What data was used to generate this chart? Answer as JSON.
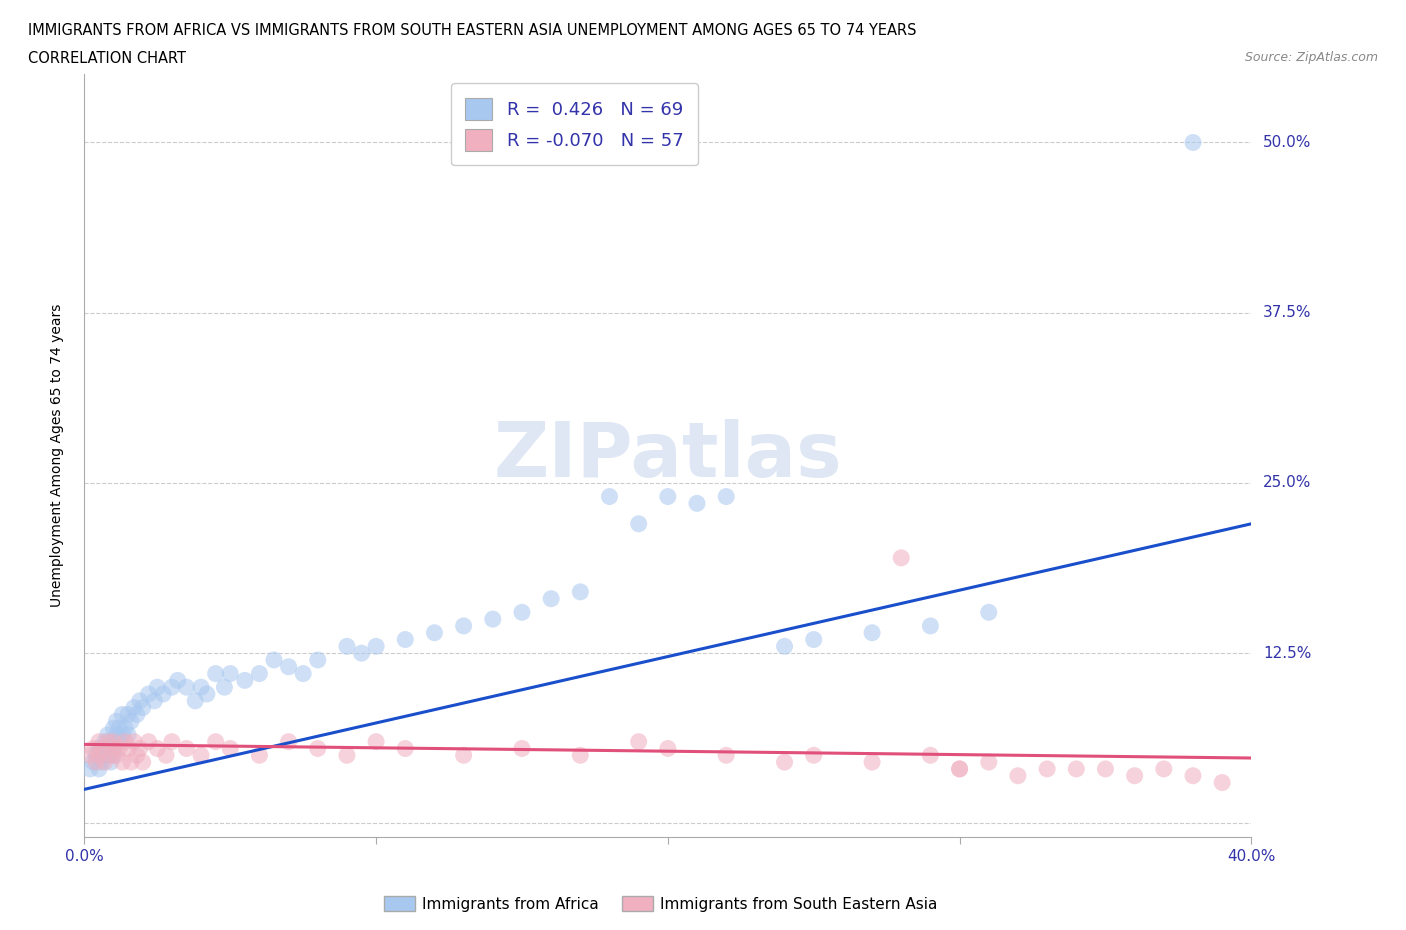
{
  "title_line1": "IMMIGRANTS FROM AFRICA VS IMMIGRANTS FROM SOUTH EASTERN ASIA UNEMPLOYMENT AMONG AGES 65 TO 74 YEARS",
  "title_line2": "CORRELATION CHART",
  "source": "Source: ZipAtlas.com",
  "ylabel": "Unemployment Among Ages 65 to 74 years",
  "xlim": [
    0.0,
    0.4
  ],
  "ylim": [
    -0.01,
    0.55
  ],
  "ytick_values": [
    0.0,
    0.125,
    0.25,
    0.375,
    0.5
  ],
  "ytick_labels": [
    "",
    "12.5%",
    "25.0%",
    "37.5%",
    "50.0%"
  ],
  "xtick_values": [
    0.0,
    0.1,
    0.2,
    0.3,
    0.4
  ],
  "xtick_labels": [
    "0.0%",
    "",
    "",
    "",
    "40.0%"
  ],
  "color_africa": "#a8c8f0",
  "color_sea": "#f0b0c0",
  "line_color_africa": "#1a4fcc",
  "line_color_sea": "#e0507a",
  "R_africa": 0.426,
  "N_africa": 69,
  "R_sea": -0.07,
  "N_sea": 57,
  "watermark": "ZIPatlas",
  "legend_label_africa": "Immigrants from Africa",
  "legend_label_sea": "Immigrants from South Eastern Asia",
  "africa_x": [
    0.002,
    0.003,
    0.004,
    0.005,
    0.005,
    0.006,
    0.007,
    0.007,
    0.008,
    0.008,
    0.009,
    0.009,
    0.01,
    0.01,
    0.01,
    0.011,
    0.011,
    0.012,
    0.012,
    0.013,
    0.013,
    0.014,
    0.015,
    0.015,
    0.016,
    0.017,
    0.018,
    0.019,
    0.02,
    0.022,
    0.024,
    0.025,
    0.027,
    0.03,
    0.032,
    0.035,
    0.038,
    0.04,
    0.042,
    0.045,
    0.048,
    0.05,
    0.055,
    0.06,
    0.065,
    0.07,
    0.075,
    0.08,
    0.09,
    0.095,
    0.1,
    0.11,
    0.12,
    0.13,
    0.14,
    0.15,
    0.16,
    0.17,
    0.18,
    0.19,
    0.2,
    0.21,
    0.22,
    0.24,
    0.25,
    0.27,
    0.29,
    0.31,
    0.38
  ],
  "africa_y": [
    0.04,
    0.045,
    0.05,
    0.04,
    0.055,
    0.045,
    0.05,
    0.06,
    0.05,
    0.065,
    0.045,
    0.06,
    0.05,
    0.055,
    0.07,
    0.065,
    0.075,
    0.06,
    0.07,
    0.065,
    0.08,
    0.07,
    0.065,
    0.08,
    0.075,
    0.085,
    0.08,
    0.09,
    0.085,
    0.095,
    0.09,
    0.1,
    0.095,
    0.1,
    0.105,
    0.1,
    0.09,
    0.1,
    0.095,
    0.11,
    0.1,
    0.11,
    0.105,
    0.11,
    0.12,
    0.115,
    0.11,
    0.12,
    0.13,
    0.125,
    0.13,
    0.135,
    0.14,
    0.145,
    0.15,
    0.155,
    0.165,
    0.17,
    0.24,
    0.22,
    0.24,
    0.235,
    0.24,
    0.13,
    0.135,
    0.14,
    0.145,
    0.155,
    0.5
  ],
  "sea_x": [
    0.002,
    0.003,
    0.004,
    0.005,
    0.005,
    0.006,
    0.007,
    0.008,
    0.009,
    0.01,
    0.01,
    0.011,
    0.012,
    0.013,
    0.014,
    0.015,
    0.016,
    0.017,
    0.018,
    0.019,
    0.02,
    0.022,
    0.025,
    0.028,
    0.03,
    0.035,
    0.04,
    0.045,
    0.05,
    0.06,
    0.07,
    0.08,
    0.09,
    0.1,
    0.11,
    0.13,
    0.15,
    0.17,
    0.19,
    0.2,
    0.22,
    0.24,
    0.25,
    0.27,
    0.29,
    0.3,
    0.31,
    0.33,
    0.35,
    0.36,
    0.37,
    0.38,
    0.39,
    0.28,
    0.3,
    0.32,
    0.34
  ],
  "sea_y": [
    0.05,
    0.055,
    0.045,
    0.06,
    0.05,
    0.055,
    0.045,
    0.06,
    0.05,
    0.055,
    0.06,
    0.05,
    0.055,
    0.045,
    0.06,
    0.055,
    0.045,
    0.06,
    0.05,
    0.055,
    0.045,
    0.06,
    0.055,
    0.05,
    0.06,
    0.055,
    0.05,
    0.06,
    0.055,
    0.05,
    0.06,
    0.055,
    0.05,
    0.06,
    0.055,
    0.05,
    0.055,
    0.05,
    0.06,
    0.055,
    0.05,
    0.045,
    0.05,
    0.045,
    0.05,
    0.04,
    0.045,
    0.04,
    0.04,
    0.035,
    0.04,
    0.035,
    0.03,
    0.195,
    0.04,
    0.035,
    0.04
  ],
  "africa_line_x": [
    0.0,
    0.4
  ],
  "africa_line_y": [
    0.025,
    0.22
  ],
  "sea_line_x": [
    0.0,
    0.4
  ],
  "sea_line_y": [
    0.058,
    0.048
  ]
}
